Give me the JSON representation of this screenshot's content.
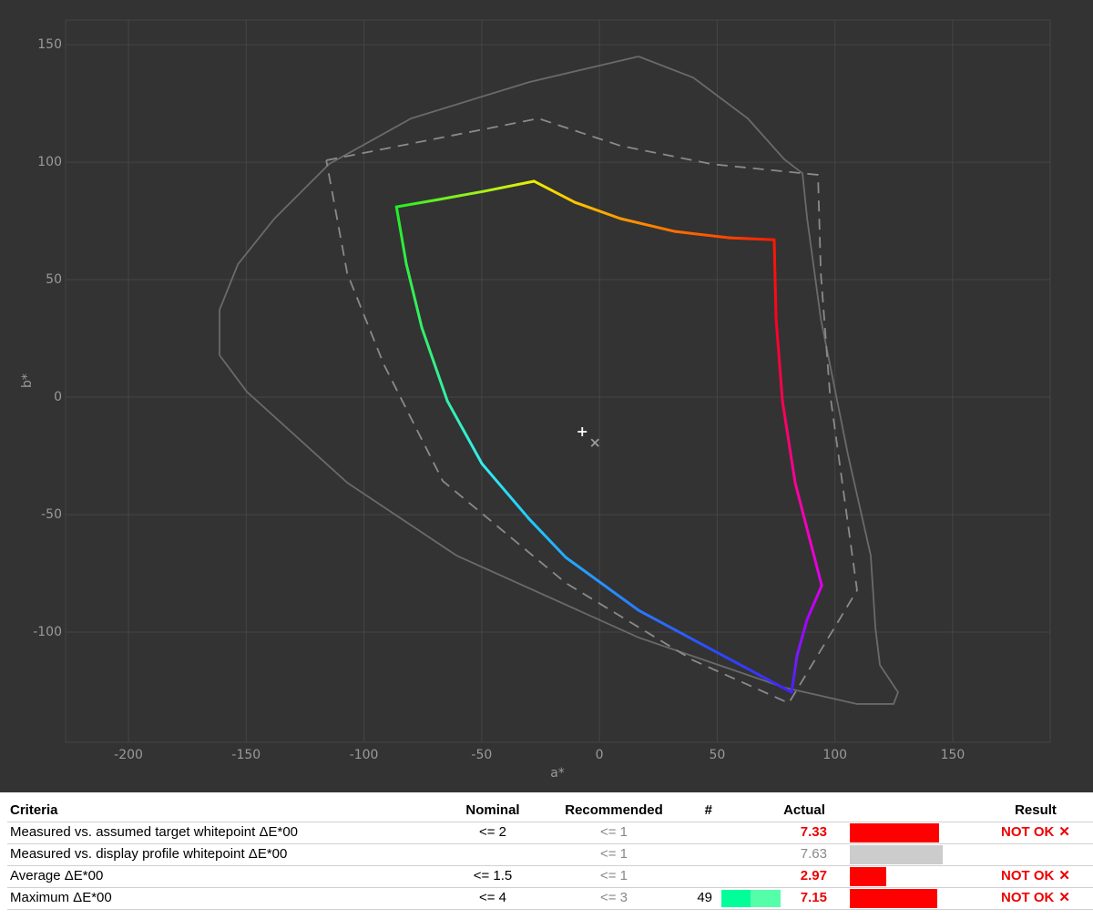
{
  "chart_data": {
    "type": "line",
    "xlabel": "a*",
    "ylabel": "b*",
    "xlim": [
      -226.7,
      191.4
    ],
    "ylim": [
      -146.9,
      160.5
    ],
    "xticks": [
      -200,
      -150,
      -100,
      -50,
      0,
      50,
      100,
      150
    ],
    "yticks": [
      -100,
      -50,
      0,
      50,
      100,
      150
    ],
    "grid": true,
    "series": [
      {
        "style": "solid",
        "color": "#6a6a6a",
        "x": [
          16.6,
          39.8,
          63,
          78.5,
          86.2,
          88.2,
          94,
          105.6,
          115.2,
          117.2,
          119.1,
          126.8,
          124.9,
          109.4,
          78.5,
          16.6,
          -60.7,
          -107.1,
          -149.7,
          -161.3,
          -161.3,
          -153.5,
          -138,
          -114.8,
          -80,
          -29.8,
          16.6
        ],
        "y": [
          145,
          136,
          118.6,
          101.2,
          95.3,
          76,
          33.3,
          -24.8,
          -67.4,
          -98.4,
          -114,
          -125.6,
          -130.6,
          -130.6,
          -123.6,
          -102.3,
          -67.4,
          -36.4,
          2.3,
          17.8,
          37.2,
          56.6,
          76,
          99.2,
          118.6,
          134.1,
          145
        ]
      },
      {
        "style": "dashed",
        "color": "#8a8a8a",
        "x": [
          -116,
          -25.9,
          8.9,
          47.6,
          92.8,
          94,
          97.8,
          109.4,
          80.4,
          39.8,
          -14.3,
          -66.5,
          -91.6,
          -107.1,
          -116
        ],
        "y": [
          100.8,
          118.6,
          107,
          99.2,
          94.6,
          52.7,
          2.3,
          -82.2,
          -130.2,
          -112,
          -79.1,
          -35.7,
          14,
          52.7,
          100.8
        ]
      },
      {
        "style": "gradient",
        "x": [
          -86.2,
          -68.4,
          -49.1,
          -27.8,
          -10.4,
          8.9,
          32.1,
          55.3,
          74.2,
          75,
          77.7,
          83.1,
          90.1,
          94.4,
          88.2,
          83.9,
          81.6,
          47.6,
          16.6,
          -14.3,
          -29.8,
          -49.9,
          -64.6,
          -75.4,
          -82,
          -86.2
        ],
        "y": [
          81,
          84.1,
          87.6,
          91.9,
          82.9,
          76,
          70.5,
          67.8,
          67,
          33.3,
          -1.6,
          -36.4,
          -63.6,
          -80.2,
          -94.6,
          -110,
          -125.6,
          -107.4,
          -90.7,
          -68.2,
          -51.9,
          -28.3,
          -1.6,
          29.5,
          56.6,
          81
        ],
        "colors": [
          "#22ee22",
          "#66f022",
          "#aaf01a",
          "#eeee00",
          "#ffc400",
          "#ff9a00",
          "#ff7000",
          "#ff4400",
          "#ff1a00",
          "#ff0022",
          "#ff0055",
          "#ff0099",
          "#ee00cc",
          "#dd00ee",
          "#aa00ff",
          "#7a1aff",
          "#4422ff",
          "#2a4cff",
          "#2a7aff",
          "#22aaff",
          "#22ccff",
          "#33eeee",
          "#33f0aa",
          "#33f066",
          "#33ee44",
          "#22ee22"
        ]
      }
    ],
    "points": [
      {
        "marker": "plus",
        "color": "#ffffff",
        "x": -7.3,
        "y": -14.7
      },
      {
        "marker": "cross",
        "color": "#9a9a9a",
        "x": -1.9,
        "y": -19.4
      }
    ]
  },
  "table": {
    "columns": [
      "Criteria",
      "Nominal",
      "Recommended",
      "#",
      "Actual",
      "Result"
    ],
    "rows": [
      {
        "criteria": "Measured vs. assumed target whitepoint ΔE*00",
        "nominal": "<= 2",
        "recommended": "<= 1",
        "actual": 7.33,
        "bar_color": "#ff0000",
        "result": "NOT OK"
      },
      {
        "criteria": "Measured vs. display profile whitepoint ΔE*00",
        "recommended": "<= 1",
        "actual": 7.63,
        "bar_color": "#cccccc"
      },
      {
        "criteria": "Average ΔE*00",
        "nominal": "<= 1.5",
        "recommended": "<= 1",
        "actual": 2.97,
        "bar_color": "#ff0000",
        "result": "NOT OK"
      },
      {
        "criteria": "Maximum ΔE*00",
        "nominal": "<= 4",
        "recommended": "<= 3",
        "count": 49,
        "actual": 7.15,
        "bar_color": "#ff0000",
        "result": "NOT OK"
      }
    ]
  }
}
